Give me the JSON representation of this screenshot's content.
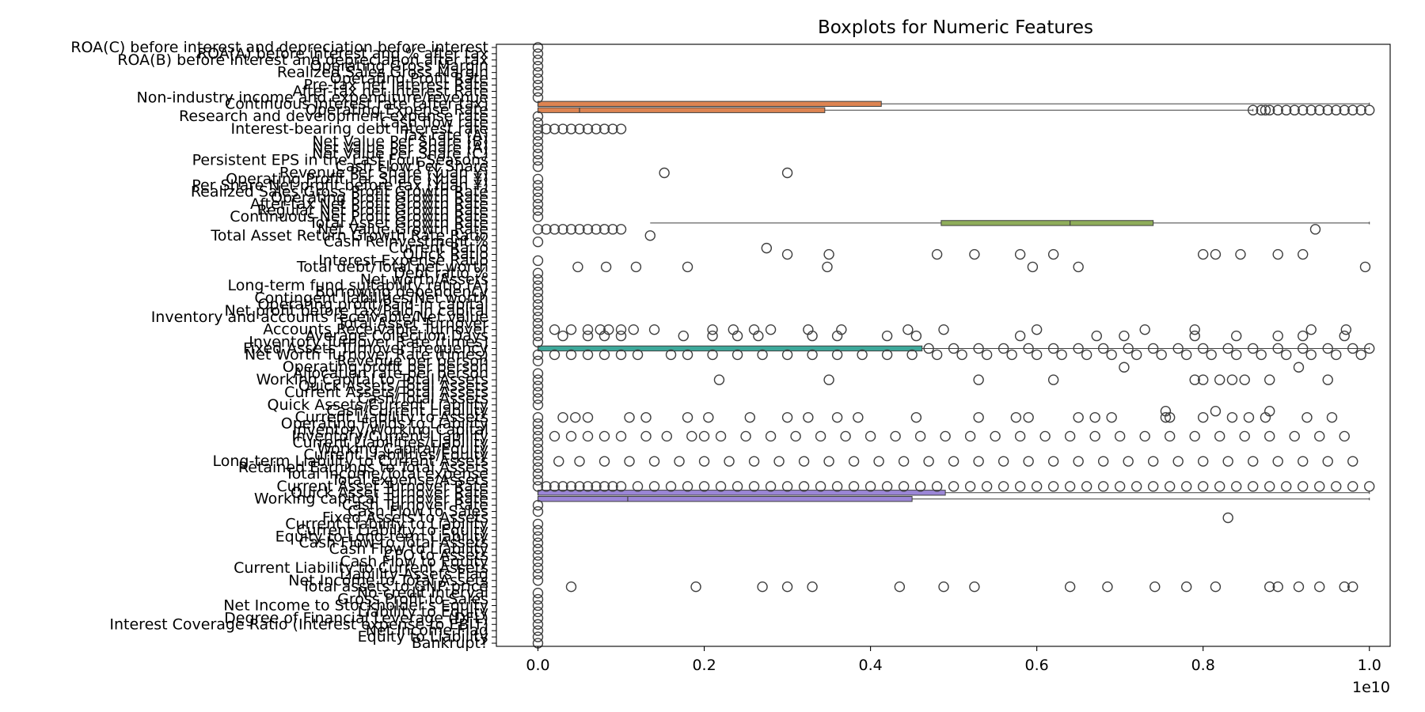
{
  "chart_data": {
    "type": "boxplot",
    "orientation": "horizontal",
    "title": "Boxplots for Numeric Features",
    "xlabel": "",
    "ylabel": "",
    "x_offset_label": "1e10",
    "xlim": [
      -0.05,
      1.025
    ],
    "xticks": [
      0.0,
      0.2,
      0.4,
      0.6,
      0.8,
      1.0
    ],
    "xtick_labels": [
      "0.0",
      "0.2",
      "0.4",
      "0.6",
      "0.8",
      "1.0"
    ],
    "grid": false,
    "legend": "none",
    "categories": [
      "ROA(C) before interest and depreciation before interest",
      "ROA(A) before interest and % after tax",
      "ROA(B) before interest and depreciation after tax",
      "Operating Gross Margin",
      "Realized Sales Gross Margin",
      "Operating Profit Rate",
      "Pre-tax net Interest Rate",
      "After-tax net Interest Rate",
      "Non-industry income and expenditure/revenue",
      "Continuous interest rate (after tax)",
      "Operating Expense Rate",
      "Research and development expense rate",
      "Cash flow rate",
      "Interest-bearing debt interest rate",
      "Tax rate (A)",
      "Net Value Per Share (B)",
      "Net Value Per Share (A)",
      "Net Value Per Share (C)",
      "Persistent EPS in the Last Four Seasons",
      "Cash Flow Per Share",
      "Revenue Per Share (Yuan ¥)",
      "Operating Profit Per Share (Yuan ¥)",
      "Per Share Net profit before tax (Yuan ¥)",
      "Realized Sales Gross Profit Growth Rate",
      "Operating Profit Growth Rate",
      "After-tax Net Profit Growth Rate",
      "Regular Net Profit Growth Rate",
      "Continuous Net Profit Growth Rate",
      "Total Asset Growth Rate",
      "Net Value Growth Rate",
      "Total Asset Return Growth Rate Ratio",
      "Cash Reinvestment %",
      "Current Ratio",
      "Quick Ratio",
      "Interest Expense Ratio",
      "Total debt/Total net worth",
      "Debt ratio %",
      "Net worth/Assets",
      "Long-term fund suitability ratio (A)",
      "Borrowing dependency",
      "Contingent liabilities/Net worth",
      "Operating profit/Paid-in capital",
      "Net profit before tax/Paid-in capital",
      "Inventory and accounts receivable/Net value",
      "Total Asset Turnover",
      "Accounts Receivable Turnover",
      "Average Collection Days",
      "Inventory Turnover Rate (times)",
      "Fixed Assets Turnover Frequency",
      "Net Worth Turnover Rate (times)",
      "Revenue per person",
      "Operating profit per person",
      "Allocation rate per person",
      "Working Capital to Total Assets",
      "Quick Assets/Total Assets",
      "Current Assets/Total Assets",
      "Cash/Total Assets",
      "Quick Assets/Current Liability",
      "Cash/Current Liability",
      "Current Liability to Assets",
      "Operating Funds to Liability",
      "Inventory/Working Capital",
      "Inventory/Current Liability",
      "Current Liabilities/Liability",
      "Working Capital/Equity",
      "Current Liabilities/Equity",
      "Long-term Liability to Current Assets",
      "Retained Earnings to Total Assets",
      "Total income/Total expense",
      "Total expense/Assets",
      "Current Asset Turnover Rate",
      "Quick Asset Turnover Rate",
      "Working capitcal Turnover Rate",
      "Cash Turnover Rate",
      "Cash Flow to Sales",
      "Fixed Assets to Assets",
      "Current Liability to Liability",
      "Current Liability to Equity",
      "Equity to Long-term Liability",
      "Cash Flow to Total Assets",
      "Cash Flow to Liability",
      "CFO to Assets",
      "Cash Flow to Equity",
      "Current Liability to Current Assets",
      "Liability-Assets Flag",
      "Net Income to Total Assets",
      "Total assets to GNP price",
      "No-credit Interval",
      "Gross Profit to Sales",
      "Net Income to Stockholder's Equity",
      "Liability to Equity",
      "Degree of Financial Leverage (DFL)",
      "Interest Coverage Ratio (Interest expense to EBIT)",
      "Net Income Flag",
      "Equity to Liability",
      "Bankrupt?"
    ],
    "boxes": [
      {
        "index": 9,
        "q1": 0.0,
        "median": 0.0,
        "q3": 0.413,
        "whisker_low": 0.0,
        "whisker_high": 1.0,
        "color": "#dd8452"
      },
      {
        "index": 10,
        "q1": 0.0,
        "median": 0.05,
        "q3": 0.345,
        "whisker_low": 0.0,
        "whisker_high": 0.86,
        "color": "#dd8452"
      },
      {
        "index": 28,
        "q1": 0.485,
        "median": 0.64,
        "q3": 0.74,
        "whisker_low": 0.135,
        "whisker_high": 1.0,
        "color": "#8fad5a"
      },
      {
        "index": 48,
        "q1": 0.0,
        "median": 0.0,
        "q3": 0.462,
        "whisker_low": 0.0,
        "whisker_high": 1.0,
        "color": "#3da89a"
      },
      {
        "index": 71,
        "q1": 0.0,
        "median": 0.0,
        "q3": 0.49,
        "whisker_low": 0.0,
        "whisker_high": 1.0,
        "color": "#9b86d6"
      },
      {
        "index": 72,
        "q1": 0.0,
        "median": 0.108,
        "q3": 0.45,
        "whisker_low": 0.0,
        "whisker_high": 1.0,
        "color": "#9b86d6"
      }
    ],
    "outliers": [
      {
        "index": 10,
        "values": [
          0.86,
          0.87,
          0.875,
          0.88,
          0.89,
          0.9,
          0.91,
          0.92,
          0.93,
          0.94,
          0.95,
          0.96,
          0.97,
          0.98,
          0.99,
          1.0
        ]
      },
      {
        "index": 13,
        "values": [
          0.0,
          0.01,
          0.02,
          0.03,
          0.04,
          0.05,
          0.06,
          0.07,
          0.08,
          0.09,
          0.1
        ]
      },
      {
        "index": 20,
        "values": [
          0.152,
          0.3
        ]
      },
      {
        "index": 29,
        "values": [
          0.0,
          0.01,
          0.02,
          0.03,
          0.04,
          0.05,
          0.06,
          0.07,
          0.08,
          0.09,
          0.1,
          0.935
        ]
      },
      {
        "index": 30,
        "values": [
          0.135
        ]
      },
      {
        "index": 32,
        "values": [
          0.275
        ]
      },
      {
        "index": 33,
        "values": [
          0.3,
          0.35,
          0.48,
          0.525,
          0.58,
          0.62,
          0.8,
          0.815,
          0.845,
          0.89,
          0.92
        ]
      },
      {
        "index": 35,
        "values": [
          0.048,
          0.082,
          0.118,
          0.18,
          0.348,
          0.595,
          0.65,
          0.995
        ]
      },
      {
        "index": 45,
        "values": [
          0.0,
          0.02,
          0.04,
          0.06,
          0.075,
          0.085,
          0.1,
          0.115,
          0.14,
          0.21,
          0.235,
          0.26,
          0.28,
          0.325,
          0.365,
          0.445,
          0.488,
          0.6,
          0.73,
          0.79,
          0.93,
          0.972
        ]
      },
      {
        "index": 46,
        "values": [
          0.0,
          0.03,
          0.06,
          0.08,
          0.1,
          0.175,
          0.21,
          0.24,
          0.265,
          0.33,
          0.36,
          0.42,
          0.455,
          0.58,
          0.672,
          0.705,
          0.79,
          0.84,
          0.89,
          0.92,
          0.97
        ]
      },
      {
        "index": 48,
        "values": [
          0.47,
          0.5,
          0.53,
          0.56,
          0.59,
          0.62,
          0.65,
          0.68,
          0.71,
          0.74,
          0.77,
          0.8,
          0.83,
          0.86,
          0.89,
          0.92,
          0.95,
          0.98,
          1.0
        ]
      },
      {
        "index": 49,
        "values": [
          0.0,
          0.02,
          0.04,
          0.06,
          0.08,
          0.1,
          0.12,
          0.16,
          0.18,
          0.21,
          0.24,
          0.27,
          0.3,
          0.33,
          0.36,
          0.39,
          0.42,
          0.45,
          0.48,
          0.51,
          0.54,
          0.57,
          0.6,
          0.63,
          0.66,
          0.69,
          0.72,
          0.75,
          0.78,
          0.81,
          0.84,
          0.87,
          0.9,
          0.93,
          0.96,
          0.99
        ]
      },
      {
        "index": 51,
        "values": [
          0.705,
          0.915
        ]
      },
      {
        "index": 53,
        "values": [
          0.0,
          0.218,
          0.35,
          0.53,
          0.62,
          0.79,
          0.8,
          0.82,
          0.835,
          0.85,
          0.88,
          0.95
        ]
      },
      {
        "index": 58,
        "values": [
          0.755,
          0.815,
          0.88
        ]
      },
      {
        "index": 59,
        "values": [
          0.0,
          0.03,
          0.045,
          0.06,
          0.11,
          0.13,
          0.18,
          0.205,
          0.255,
          0.3,
          0.325,
          0.36,
          0.385,
          0.455,
          0.53,
          0.575,
          0.59,
          0.65,
          0.67,
          0.69,
          0.755,
          0.76,
          0.8,
          0.835,
          0.855,
          0.875,
          0.925,
          0.955
        ]
      },
      {
        "index": 62,
        "values": [
          0.0,
          0.02,
          0.04,
          0.06,
          0.08,
          0.1,
          0.13,
          0.155,
          0.185,
          0.2,
          0.22,
          0.25,
          0.28,
          0.31,
          0.34,
          0.37,
          0.4,
          0.43,
          0.46,
          0.49,
          0.52,
          0.55,
          0.58,
          0.61,
          0.64,
          0.67,
          0.7,
          0.73,
          0.76,
          0.79,
          0.82,
          0.85,
          0.88,
          0.91,
          0.94,
          0.97
        ]
      },
      {
        "index": 66,
        "values": [
          0.0,
          0.025,
          0.05,
          0.08,
          0.11,
          0.14,
          0.17,
          0.2,
          0.23,
          0.26,
          0.29,
          0.32,
          0.35,
          0.38,
          0.41,
          0.44,
          0.47,
          0.5,
          0.53,
          0.56,
          0.59,
          0.62,
          0.65,
          0.68,
          0.71,
          0.74,
          0.77,
          0.8,
          0.83,
          0.86,
          0.89,
          0.92,
          0.95,
          0.98
        ]
      },
      {
        "index": 70,
        "values": [
          0.0,
          0.01,
          0.02,
          0.03,
          0.04,
          0.05,
          0.06,
          0.07,
          0.08,
          0.09,
          0.1,
          0.12,
          0.14,
          0.16,
          0.18,
          0.2,
          0.22,
          0.24,
          0.26,
          0.28,
          0.3,
          0.32,
          0.34,
          0.36,
          0.38,
          0.4,
          0.42,
          0.44,
          0.46,
          0.48,
          0.5,
          0.52,
          0.54,
          0.56,
          0.58,
          0.6,
          0.62,
          0.64,
          0.66,
          0.68,
          0.7,
          0.72,
          0.74,
          0.76,
          0.78,
          0.8,
          0.82,
          0.84,
          0.86,
          0.88,
          0.9,
          0.92,
          0.94,
          0.96,
          0.98,
          1.0
        ]
      },
      {
        "index": 75,
        "values": [
          0.83
        ]
      },
      {
        "index": 86,
        "values": [
          0.04,
          0.19,
          0.27,
          0.3,
          0.33,
          0.435,
          0.488,
          0.525,
          0.64,
          0.685,
          0.742,
          0.78,
          0.815,
          0.88,
          0.89,
          0.915,
          0.94,
          0.97,
          0.98
        ]
      }
    ]
  }
}
